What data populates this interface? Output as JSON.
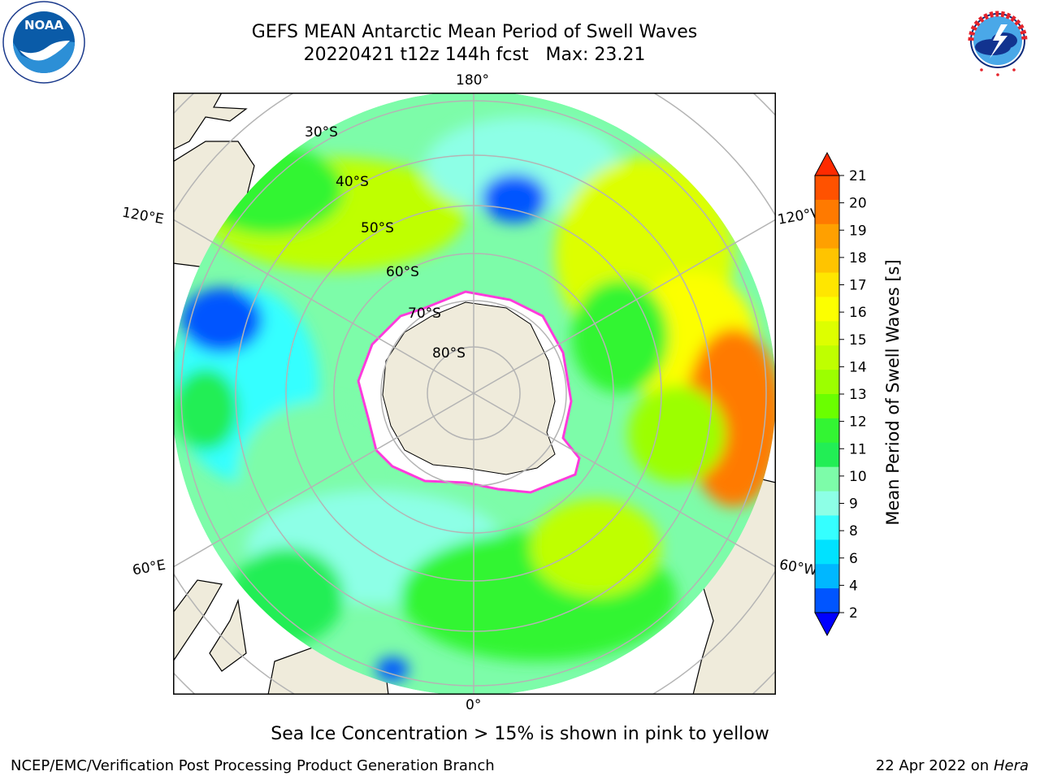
{
  "header": {
    "title_line1": "GEFS MEAN Antarctic Mean Period of Swell Waves",
    "title_line2": "20220421 t12z 144h fcst   Max: 23.21"
  },
  "logos": {
    "left": {
      "name": "noaa-logo",
      "text": "NOAA",
      "ring_text": "NATIONAL OCEANIC AND ATMOSPHERIC ADMINISTRATION · U.S. DEPARTMENT OF COMMERCE"
    },
    "right": {
      "name": "nws-logo",
      "ring_text": "NATIONAL WEATHER SERVICE"
    }
  },
  "map": {
    "projection": "south-polar-stereographic",
    "lon_labels": {
      "top": "180°",
      "left_upper": "120°E",
      "right_upper": "120°W",
      "left_lower": "60°E",
      "right_lower": "60°W",
      "bottom": "0°"
    },
    "lat_labels": [
      "30°S",
      "40°S",
      "50°S",
      "60°S",
      "70°S",
      "80°S"
    ],
    "colors": {
      "land": "#efebdb",
      "ocean_default": "#7dfde0",
      "grid": "#b4b4b4",
      "ice_edge": [
        "#ff3bdc",
        "#ffd23c"
      ]
    }
  },
  "colorbar": {
    "label": "Mean Period of Swell Waves [s]",
    "ticks": [
      "21",
      "20",
      "19",
      "18",
      "17",
      "16",
      "15",
      "14",
      "13",
      "12",
      "11",
      "10",
      "9",
      "8",
      "6",
      "4",
      "2"
    ],
    "colors": [
      "#ff2a00",
      "#ff5200",
      "#ff7a00",
      "#ffa000",
      "#ffc400",
      "#ffe600",
      "#fcff00",
      "#ddff00",
      "#bfff00",
      "#9cff00",
      "#6aff00",
      "#33f533",
      "#22ee55",
      "#7dfca9",
      "#8dffe6",
      "#35ffff",
      "#00e2ff",
      "#00b7ff",
      "#0055ff",
      "#0000ff"
    ]
  },
  "caption": "Sea Ice Concentration > 15% is shown in pink to yellow",
  "footer": {
    "left": "NCEP/EMC/Verification Post Processing Product Generation Branch",
    "right_prefix": "22 Apr 2022 on ",
    "right_machine": "Hera"
  }
}
